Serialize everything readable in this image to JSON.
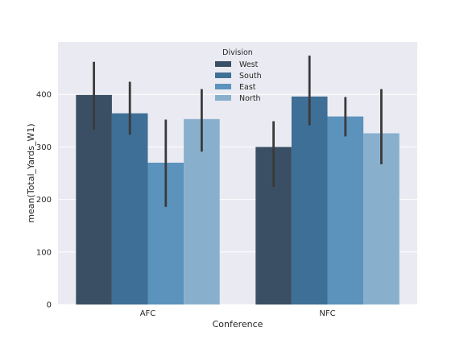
{
  "chart_data": {
    "type": "bar",
    "title": "",
    "xlabel": "Conference",
    "ylabel": "mean(Total_Yards_W1)",
    "categories": [
      "AFC",
      "NFC"
    ],
    "ylim": [
      0,
      500
    ],
    "yticks": [
      0,
      100,
      200,
      300,
      400
    ],
    "grid": true,
    "legend": {
      "title": "Division",
      "placement": "top-center"
    },
    "series": [
      {
        "name": "West",
        "color": "#3a4f63",
        "values": [
          399,
          300
        ],
        "ci_low": [
          333,
          224
        ],
        "ci_high": [
          462,
          349
        ]
      },
      {
        "name": "South",
        "color": "#3e6f96",
        "values": [
          364,
          396
        ],
        "ci_low": [
          323,
          341
        ],
        "ci_high": [
          424,
          474
        ]
      },
      {
        "name": "East",
        "color": "#5b93bd",
        "values": [
          270,
          358
        ],
        "ci_low": [
          186,
          320
        ],
        "ci_high": [
          352,
          395
        ]
      },
      {
        "name": "North",
        "color": "#88b0cd",
        "values": [
          353,
          326
        ],
        "ci_low": [
          291,
          267
        ],
        "ci_high": [
          410,
          410
        ]
      }
    ],
    "background_color": "#eaeaf2",
    "error_bar_color": "#3a3a3a"
  }
}
